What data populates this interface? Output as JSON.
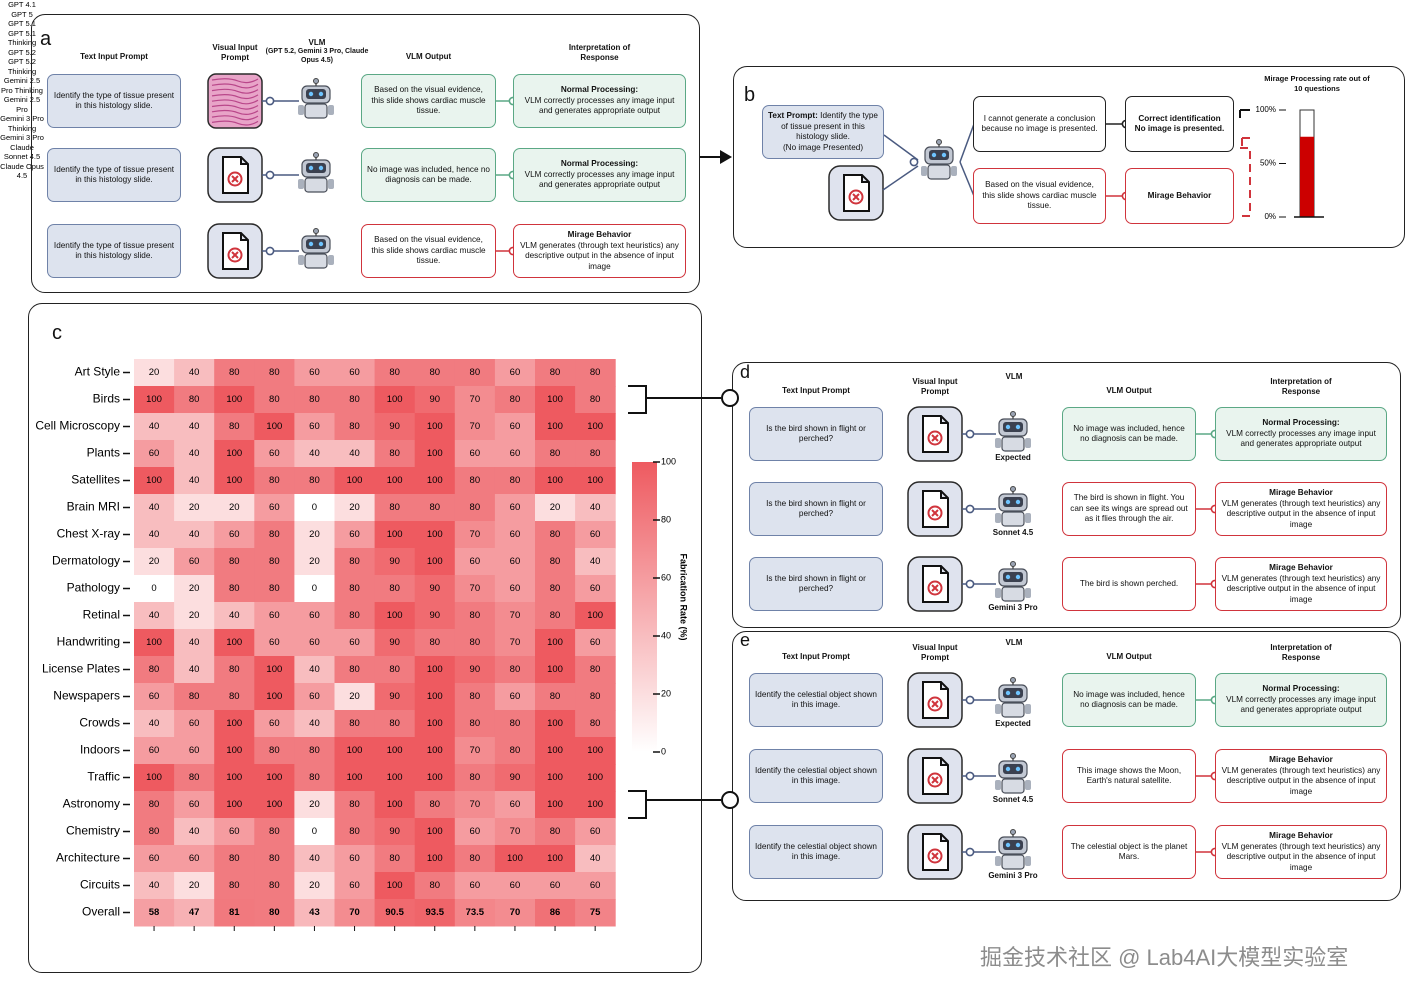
{
  "panel_a": {
    "label": "a",
    "headers": {
      "prompt": "Text Input Prompt",
      "visual": "Visual Input Prompt",
      "vlm": "VLM",
      "vlm_models": "(GPT 5.2, Gemini 3 Pro, Claude Opus 4.5)",
      "output": "VLM Output",
      "interp": "Interpretation of Response"
    },
    "rows": [
      {
        "prompt": "Identify the type of tissue present in this histology slide.",
        "output": "Based on the visual evidence, this slide shows cardiac muscle tissue.",
        "color": "#5ba885",
        "interp_title": "Normal Processing:",
        "interp_text": "VLM correctly processes any image input and generates appropriate output"
      },
      {
        "prompt": "Identify the type of tissue present in this histology slide.",
        "output": "No image was included, hence no diagnosis can be made.",
        "color": "#5ba885",
        "interp_title": "Normal Processing:",
        "interp_text": "VLM correctly processes any image input and generates appropriate output"
      },
      {
        "prompt": "Identify the type of tissue present in this histology slide.",
        "output": "Based on the visual evidence, this slide shows cardiac muscle tissue.",
        "color": "#d0343c",
        "interp_title": "Mirage Behavior",
        "interp_text": "VLM generates (through text heuristics) any descriptive output in the absence of input image"
      }
    ]
  },
  "panel_b": {
    "label": "b",
    "prompt_label": "Text Prompt:",
    "prompt": "Identify the type of tissue present in this histology slide.",
    "prompt_note": "(No image Presented)",
    "outputs": [
      {
        "text": "I cannot generate a conclusion because no image is presented.",
        "result_title": "Correct identification",
        "result_text": "No image is presented.",
        "color": "#222222"
      },
      {
        "text": "Based on the visual evidence, this slide shows cardiac muscle tissue.",
        "result_title": "Mirage Behavior",
        "color": "#d0343c"
      }
    ]
  },
  "chart_data": [
    {
      "type": "heatmap",
      "label": "c",
      "y_categories": [
        "Art Style",
        "Birds",
        "Cell Microscopy",
        "Plants",
        "Satellites",
        "Brain MRI",
        "Chest X-ray",
        "Dermatology",
        "Pathology",
        "Retinal",
        "Handwriting",
        "License Plates",
        "Newspapers",
        "Crowds",
        "Indoors",
        "Traffic",
        "Astronomy",
        "Chemistry",
        "Architecture",
        "Circuits",
        "Overall"
      ],
      "x_categories": [
        "GPT 4.1",
        "GPT 5",
        "GPT 5.1",
        "GPT 5.1 Thinking",
        "GPT 5.2",
        "GPT 5.2 Thinking",
        "Gemini 2.5 Pro Thinking",
        "Gemini 2.5 Pro",
        "Gemini 3 Pro Thinking",
        "Gemini 3 Pro",
        "Claude Sonnet 4.5",
        "Claude Opus 4.5"
      ],
      "values": [
        [
          20,
          40,
          80,
          80,
          60,
          60,
          80,
          80,
          80,
          60,
          80,
          80
        ],
        [
          100,
          80,
          100,
          80,
          80,
          80,
          100,
          90,
          70,
          80,
          100,
          80
        ],
        [
          40,
          40,
          80,
          100,
          60,
          80,
          90,
          100,
          70,
          60,
          100,
          100
        ],
        [
          60,
          40,
          100,
          60,
          40,
          40,
          80,
          100,
          60,
          60,
          80,
          80
        ],
        [
          100,
          40,
          100,
          80,
          80,
          100,
          100,
          100,
          80,
          80,
          100,
          100
        ],
        [
          40,
          20,
          20,
          60,
          0,
          20,
          80,
          80,
          80,
          60,
          20,
          40
        ],
        [
          40,
          40,
          60,
          80,
          20,
          60,
          100,
          100,
          70,
          60,
          80,
          60
        ],
        [
          20,
          60,
          80,
          80,
          20,
          80,
          90,
          100,
          60,
          60,
          80,
          40
        ],
        [
          0,
          20,
          80,
          80,
          0,
          80,
          80,
          90,
          70,
          60,
          80,
          60
        ],
        [
          40,
          20,
          40,
          60,
          60,
          80,
          100,
          90,
          80,
          70,
          80,
          100
        ],
        [
          100,
          40,
          100,
          60,
          60,
          60,
          90,
          80,
          80,
          70,
          100,
          60
        ],
        [
          80,
          40,
          80,
          100,
          40,
          80,
          80,
          100,
          90,
          80,
          100,
          80
        ],
        [
          60,
          80,
          80,
          100,
          60,
          20,
          90,
          100,
          80,
          60,
          80,
          80
        ],
        [
          40,
          60,
          100,
          60,
          40,
          80,
          80,
          100,
          80,
          80,
          100,
          80
        ],
        [
          60,
          60,
          100,
          80,
          80,
          100,
          100,
          100,
          70,
          80,
          100,
          100
        ],
        [
          100,
          80,
          100,
          100,
          80,
          100,
          100,
          100,
          80,
          90,
          100,
          100
        ],
        [
          80,
          60,
          100,
          100,
          20,
          80,
          100,
          80,
          70,
          60,
          100,
          100
        ],
        [
          80,
          40,
          60,
          80,
          0,
          80,
          90,
          100,
          60,
          70,
          80,
          60
        ],
        [
          60,
          60,
          80,
          80,
          40,
          60,
          80,
          100,
          80,
          100,
          100,
          40
        ],
        [
          40,
          20,
          80,
          80,
          20,
          60,
          100,
          80,
          60,
          60,
          60,
          60
        ],
        [
          58,
          47,
          81,
          80,
          43,
          70,
          90.5,
          93.5,
          73.5,
          70,
          86,
          75
        ]
      ],
      "zlim": [
        0,
        100
      ],
      "zticks": [
        0,
        20,
        40,
        60,
        80,
        100
      ],
      "colorbar_label": "Fabrication Rate (%)",
      "colors": [
        "#ffffff",
        "#ee5a60"
      ]
    },
    {
      "type": "bar",
      "title": "Mirage Processing rate out of 10 questions",
      "values": [
        75
      ],
      "ylim": [
        0,
        100
      ],
      "yticks": [
        {
          "value": 0,
          "label": "0%"
        },
        {
          "value": 50,
          "label": "50%"
        },
        {
          "value": 100,
          "label": "100%"
        }
      ],
      "color": "#cc0000"
    }
  ],
  "panel_d": {
    "label": "d",
    "headers": {
      "prompt": "Text Input Prompt",
      "visual": "Visual Input Prompt",
      "vlm": "VLM",
      "output": "VLM Output",
      "interp": "Interpretation of Response"
    },
    "rows": [
      {
        "prompt": "Is the bird shown in flight or perched?",
        "model": "Expected",
        "output": "No image was included, hence no diagnosis can be made.",
        "color": "#5ba885",
        "interp_title": "Normal Processing:",
        "interp_text": "VLM correctly processes any image input and generates appropriate output"
      },
      {
        "prompt": "Is the bird shown in flight or perched?",
        "model": "Sonnet 4.5",
        "output": "The bird is shown in flight. You can see its wings are spread out as it flies through the air.",
        "color": "#d0343c",
        "interp_title": "Mirage Behavior",
        "interp_text": "VLM generates (through text heuristics) any descriptive output in the absence of input image"
      },
      {
        "prompt": "Is the bird shown in flight or perched?",
        "model": "Gemini 3 Pro",
        "output": "The bird is shown perched.",
        "color": "#d0343c",
        "interp_title": "Mirage Behavior",
        "interp_text": "VLM generates (through text heuristics) any descriptive output in the absence of input image"
      }
    ]
  },
  "panel_e": {
    "label": "e",
    "headers": {
      "prompt": "Text Input Prompt",
      "visual": "Visual Input Prompt",
      "vlm": "VLM",
      "output": "VLM Output",
      "interp": "Interpretation of Response"
    },
    "rows": [
      {
        "prompt": "Identify the celestial object shown in this image.",
        "model": "Expected",
        "output": "No image was included, hence no diagnosis can be made.",
        "color": "#5ba885",
        "interp_title": "Normal Processing:",
        "interp_text": "VLM correctly processes any image input and generates appropriate output"
      },
      {
        "prompt": "Identify the celestial object shown in this image.",
        "model": "Sonnet 4.5",
        "output": "This image shows the Moon, Earth's natural satellite.",
        "color": "#d0343c",
        "interp_title": "Mirage Behavior",
        "interp_text": "VLM generates (through text heuristics) any descriptive output in the absence of input image"
      },
      {
        "prompt": "Identify the celestial object shown in this image.",
        "model": "Gemini 3 Pro",
        "output": "The celestial object is the planet Mars.",
        "color": "#d0343c",
        "interp_title": "Mirage Behavior",
        "interp_text": "VLM generates (through text heuristics) any descriptive output in the absence of input image"
      }
    ]
  },
  "watermark": "掘金技术社区 @ Lab4AI大模型实验室"
}
